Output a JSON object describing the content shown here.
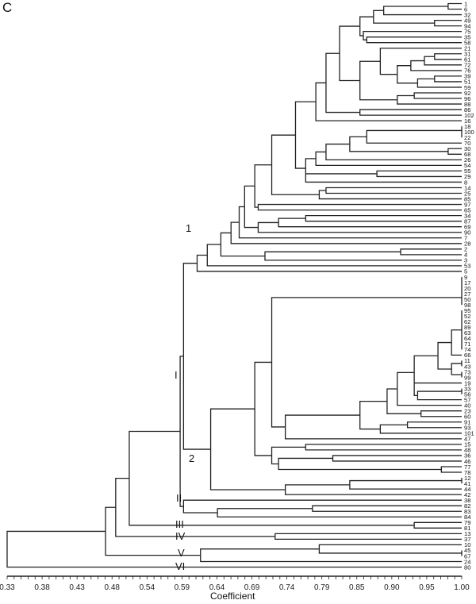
{
  "panel_letter": "C",
  "chart_data": {
    "type": "dendrogram",
    "title": "",
    "xlabel": "Coefficient",
    "ylabel": "",
    "xlim": [
      0.33,
      1.0
    ],
    "x_ticks": [
      "0.33",
      "0.38",
      "0.43",
      "0.48",
      "0.54",
      "0.59",
      "0.64",
      "0.69",
      "0.74",
      "0.79",
      "0.85",
      "0.90",
      "0.95",
      "1.00"
    ],
    "grid": false,
    "leaf_order": [
      "1",
      "6",
      "32",
      "49",
      "94",
      "75",
      "35",
      "58",
      "21",
      "31",
      "61",
      "72",
      "76",
      "39",
      "51",
      "59",
      "92",
      "96",
      "88",
      "86",
      "102",
      "16",
      "18",
      "100",
      "22",
      "70",
      "30",
      "68",
      "26",
      "54",
      "55",
      "29",
      "8",
      "14",
      "25",
      "85",
      "97",
      "65",
      "34",
      "87",
      "69",
      "90",
      "7",
      "28",
      "2",
      "4",
      "3",
      "53",
      "5",
      "9",
      "17",
      "20",
      "27",
      "50",
      "98",
      "95",
      "52",
      "62",
      "89",
      "63",
      "64",
      "71",
      "74",
      "66",
      "11",
      "43",
      "73",
      "99",
      "19",
      "33",
      "56",
      "57",
      "40",
      "23",
      "60",
      "91",
      "93",
      "101",
      "47",
      "15",
      "48",
      "36",
      "46",
      "77",
      "78",
      "12",
      "41",
      "44",
      "42",
      "38",
      "82",
      "83",
      "84",
      "79",
      "81",
      "13",
      "37",
      "10",
      "45",
      "67",
      "24",
      "80"
    ],
    "clusters": [
      {
        "label": "I",
        "members_from": "1",
        "members_to": "42",
        "subclusters": [
          {
            "label": "1",
            "members_from": "1",
            "members_to": "5"
          },
          {
            "label": "2",
            "members_from": "9",
            "members_to": "42"
          }
        ]
      },
      {
        "label": "II",
        "members_from": "38",
        "members_to": "84"
      },
      {
        "label": "III",
        "members_from": "79",
        "members_to": "81"
      },
      {
        "label": "IV",
        "members_from": "13",
        "members_to": "37"
      },
      {
        "label": "V",
        "members_from": "10",
        "members_to": "24"
      },
      {
        "label": "VI",
        "members_from": "80",
        "members_to": "80"
      }
    ],
    "root_coefficient": 0.33,
    "major_merges": [
      {
        "between": [
          "I",
          "II"
        ],
        "coefficient": 0.585
      },
      {
        "between": [
          "I+II",
          "III"
        ],
        "coefficient": 0.51
      },
      {
        "between": [
          "I+II+III",
          "IV"
        ],
        "coefficient": 0.49
      },
      {
        "between": [
          "I..IV",
          "V"
        ],
        "coefficient": 0.475
      },
      {
        "between": [
          "I..V",
          "VI"
        ],
        "coefficient": 0.33
      },
      {
        "between": [
          "1",
          "2"
        ],
        "coefficient": 0.59
      }
    ]
  },
  "group_labels": {
    "sub1": "1",
    "sub2": "2",
    "I": "I",
    "II": "II",
    "III": "III",
    "IV": "IV",
    "V": "V",
    "VI": "VI"
  }
}
